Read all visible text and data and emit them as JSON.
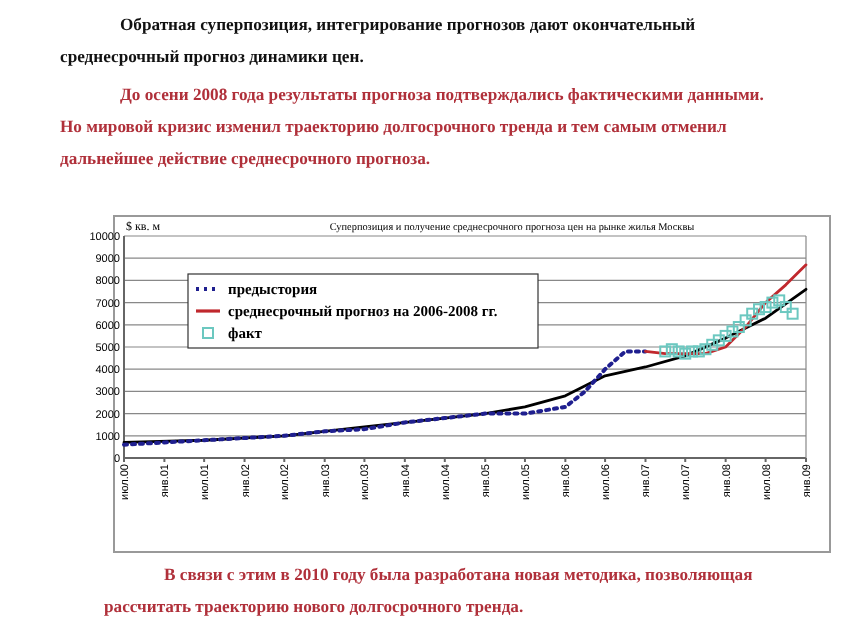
{
  "chart_data": {
    "type": "line",
    "title": "Суперпозиция и получение среднесрочного прогноза цен на рынке жилья Москвы",
    "ylabel": "$ кв. м",
    "annotations": [
      "Обратная суперпозиция, интегрирование прогнозов дают окончательный среднесрочный прогноз динамики цен.",
      "До осени 2008 года результаты прогноза подтверждались фактическими данными. Но мировой кризис изменил траекторию долгосрочного тренда и тем самым отменил дальнейшее действие среднесрочного прогноза.",
      "В связи с этим в 2010 году была разработана новая методика, позволяющая рассчитать траекторию нового долгосрочного тренда."
    ],
    "xlim": [
      "2000-07",
      "2009-01"
    ],
    "xticks": [
      {
        "value": "2000-07",
        "label": "июл.00"
      },
      {
        "value": "2001-01",
        "label": "янв.01"
      },
      {
        "value": "2001-07",
        "label": "июл.01"
      },
      {
        "value": "2002-01",
        "label": "янв.02"
      },
      {
        "value": "2002-07",
        "label": "июл.02"
      },
      {
        "value": "2003-01",
        "label": "янв.03"
      },
      {
        "value": "2003-07",
        "label": "июл.03"
      },
      {
        "value": "2004-01",
        "label": "янв.04"
      },
      {
        "value": "2004-07",
        "label": "июл.04"
      },
      {
        "value": "2005-01",
        "label": "янв.05"
      },
      {
        "value": "2005-07",
        "label": "июл.05"
      },
      {
        "value": "2006-01",
        "label": "янв.06"
      },
      {
        "value": "2006-07",
        "label": "июл.06"
      },
      {
        "value": "2007-01",
        "label": "янв.07"
      },
      {
        "value": "2007-07",
        "label": "июл.07"
      },
      {
        "value": "2008-01",
        "label": "янв.08"
      },
      {
        "value": "2008-07",
        "label": "июл.08"
      },
      {
        "value": "2009-01",
        "label": "янв.09"
      }
    ],
    "ylim": [
      0,
      10000
    ],
    "yticks": [
      0,
      1000,
      2000,
      3000,
      4000,
      5000,
      6000,
      7000,
      8000,
      9000,
      10000
    ],
    "grid": "y",
    "legend": "top left",
    "series": [
      {
        "color": "#000000",
        "line_style": "solid",
        "x": [
          "2000-07",
          "2001-07",
          "2002-07",
          "2003-07",
          "2004-07",
          "2005-01",
          "2005-07",
          "2006-01",
          "2006-07",
          "2007-01",
          "2007-07",
          "2008-01",
          "2008-07",
          "2009-01"
        ],
        "values": [
          700,
          800,
          1000,
          1400,
          1800,
          2000,
          2300,
          2800,
          3700,
          4100,
          4600,
          5400,
          6300,
          7600
        ]
      },
      {
        "name": "предыстория",
        "color": "#1f1f8f",
        "line_style": "dotted",
        "x": [
          "2000-07",
          "2001-01",
          "2001-07",
          "2002-01",
          "2002-07",
          "2003-01",
          "2003-07",
          "2004-01",
          "2004-07",
          "2005-01",
          "2005-07",
          "2006-01",
          "2006-04",
          "2006-07",
          "2006-10",
          "2007-01"
        ],
        "values": [
          600,
          700,
          800,
          900,
          1000,
          1200,
          1300,
          1600,
          1800,
          2000,
          2000,
          2300,
          3000,
          4000,
          4800,
          4800
        ]
      },
      {
        "name": "среднесрочный прогноз на 2006-2008 гг.",
        "color": "#c0282d",
        "line_style": "solid",
        "x": [
          "2007-01",
          "2007-04",
          "2007-07",
          "2007-10",
          "2008-01",
          "2008-04",
          "2008-07",
          "2008-10",
          "2009-01"
        ],
        "values": [
          4800,
          4700,
          4700,
          4700,
          5000,
          5900,
          7000,
          7800,
          8700
        ]
      },
      {
        "name": "факт",
        "type": "scatter",
        "color": "#6cc8c0",
        "marker": "square",
        "x": [
          "2007-04",
          "2007-05",
          "2007-06",
          "2007-07",
          "2007-08",
          "2007-09",
          "2007-10",
          "2007-11",
          "2007-12",
          "2008-01",
          "2008-02",
          "2008-03",
          "2008-04",
          "2008-05",
          "2008-06",
          "2008-07",
          "2008-08",
          "2008-09",
          "2008-10",
          "2008-11"
        ],
        "values": [
          4800,
          4900,
          4800,
          4700,
          4800,
          4800,
          4900,
          5100,
          5300,
          5500,
          5700,
          5900,
          6200,
          6500,
          6700,
          6800,
          7000,
          7100,
          6800,
          6500
        ]
      }
    ]
  }
}
